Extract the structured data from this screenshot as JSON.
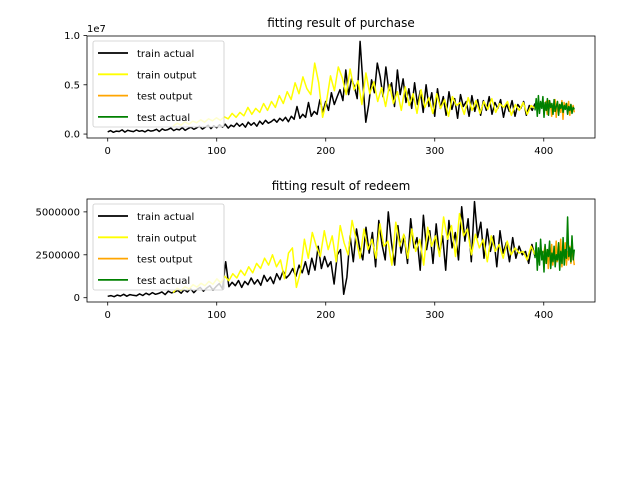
{
  "chart_data": [
    {
      "type": "line",
      "title": "fitting result of purchase",
      "xlabel": "",
      "ylabel": "",
      "xlim": [
        -19,
        447
      ],
      "ylim": [
        -400000,
        9950000
      ],
      "x_ticks": [
        0,
        100,
        200,
        300,
        400
      ],
      "x_tick_labels": [
        "0",
        "100",
        "200",
        "300",
        "400"
      ],
      "y_ticks": [
        0,
        5000000,
        10000000
      ],
      "y_tick_labels": [
        "0.0",
        "0.5",
        "1.0"
      ],
      "y_offset_label": "1e7",
      "grid": false,
      "legend_position": "upper left",
      "series": [
        {
          "name": "train actual",
          "color": "#000000",
          "x_start": 0,
          "values": [
            220000,
            350000,
            180000,
            300000,
            260000,
            420000,
            200000,
            380000,
            300000,
            250000,
            410000,
            280000,
            350000,
            220000,
            400000,
            300000,
            350000,
            480000,
            260000,
            520000,
            380000,
            450000,
            600000,
            350000,
            500000,
            420000,
            650000,
            380000,
            550000,
            700000,
            480000,
            620000,
            800000,
            500000,
            700000,
            900000,
            550000,
            850000,
            650000,
            950000,
            700000,
            1000000,
            600000,
            900000,
            750000,
            1100000,
            800000,
            1050000,
            700000,
            1200000,
            900000,
            1150000,
            800000,
            1300000,
            1000000,
            1400000,
            1100000,
            1250000,
            1500000,
            1200000,
            1600000,
            1350000,
            1700000,
            1250000,
            1800000,
            1500000,
            2800000,
            1600000,
            2000000,
            1700000,
            3200000,
            1800000,
            2300000,
            2000000,
            3500000,
            2200000,
            3300000,
            2400000,
            4200000,
            3000000,
            3800000,
            4500000,
            3400000,
            6500000,
            4000000,
            5600000,
            4800000,
            3600000,
            9400000,
            5000000,
            1200000,
            3000000,
            5500000,
            4200000,
            7200000,
            5800000,
            3800000,
            6800000,
            4400000,
            5200000,
            2800000,
            6500000,
            4000000,
            5600000,
            3200000,
            4600000,
            2600000,
            5200000,
            3000000,
            4400000,
            2200000,
            5000000,
            2800000,
            4200000,
            1800000,
            4600000,
            2600000,
            3800000,
            1900000,
            4300000,
            2500000,
            3600000,
            1600000,
            4000000,
            2800000,
            3300000,
            1800000,
            3900000,
            2300000,
            3500000,
            1900000,
            3400000,
            2400000,
            3800000,
            2000000,
            3200000,
            2600000,
            3500000,
            1700000,
            3100000,
            2300000,
            3400000,
            1800000,
            3000000,
            2600000,
            3300000,
            1900000,
            2900000,
            2400000,
            3100000
          ]
        },
        {
          "name": "train output",
          "color": "#ffff00",
          "x_start": 60,
          "values": [
            800000,
            1100000,
            900000,
            1250000,
            1000000,
            1300000,
            1150000,
            1450000,
            1200000,
            1550000,
            1350000,
            1650000,
            1400000,
            1750000,
            1550000,
            2100000,
            1700000,
            2200000,
            1850000,
            2700000,
            2000000,
            2600000,
            2200000,
            3100000,
            2400000,
            3300000,
            2700000,
            3900000,
            3100000,
            4300000,
            3500000,
            5200000,
            4100000,
            5800000,
            4600000,
            4000000,
            7200000,
            5200000,
            1700000,
            3300000,
            5900000,
            4400000,
            6800000,
            5700000,
            4000000,
            6600000,
            4500000,
            5400000,
            3000000,
            6200000,
            4100000,
            5300000,
            3300000,
            4700000,
            2800000,
            5000000,
            3100000,
            4300000,
            2400000,
            4800000,
            2900000,
            4100000,
            2100000,
            4500000,
            2700000,
            3700000,
            2100000,
            4100000,
            2600000,
            3500000,
            1800000,
            3800000,
            2900000,
            3200000,
            2000000,
            3700000,
            2400000,
            3400000,
            2100000,
            3300000,
            2500000,
            3600000,
            2200000,
            3100000,
            2700000,
            3300000,
            1900000,
            3000000,
            2400000,
            3200000,
            2000000,
            2900000,
            2600000
          ]
        },
        {
          "name": "test output",
          "color": "#ffa500",
          "x_start": 400,
          "values": [
            3000000,
            2400000,
            3300000,
            2000000,
            3400000,
            2600000,
            3100000,
            1800000,
            2900000,
            2300000,
            3500000,
            1700000,
            3300000,
            2600000,
            3000000,
            2200000,
            3400000,
            1500000,
            3200000,
            2700000,
            3100000,
            2400000,
            3300000,
            1900000,
            3000000,
            2500000,
            2900000,
            2200000
          ]
        },
        {
          "name": "test actual",
          "color": "#008000",
          "x_start": 392,
          "values": [
            2400000,
            3600000,
            1800000,
            3900000,
            2100000,
            3300000,
            2600000,
            3800000,
            1700000,
            3200000,
            2400000,
            3600000,
            1900000,
            3400000,
            2700000,
            3100000,
            2000000,
            3500000,
            2300000,
            2800000,
            3300000,
            1900000,
            3000000,
            2600000,
            3200000,
            2200000,
            2900000,
            2500000,
            3100000,
            2000000,
            2800000,
            2400000,
            3000000,
            2100000,
            2700000,
            2500000
          ]
        }
      ]
    },
    {
      "type": "line",
      "title": "fitting result of redeem",
      "xlabel": "",
      "ylabel": "",
      "xlim": [
        -19,
        447
      ],
      "ylim": [
        -250000,
        5750000
      ],
      "x_ticks": [
        0,
        100,
        200,
        300,
        400
      ],
      "x_tick_labels": [
        "0",
        "100",
        "200",
        "300",
        "400"
      ],
      "y_ticks": [
        0,
        2500000,
        5000000
      ],
      "y_tick_labels": [
        "0",
        "2500000",
        "5000000"
      ],
      "grid": false,
      "legend_position": "upper left",
      "series": [
        {
          "name": "train actual",
          "color": "#000000",
          "x_start": 0,
          "values": [
            80000,
            120000,
            60000,
            150000,
            100000,
            200000,
            90000,
            180000,
            140000,
            110000,
            220000,
            130000,
            260000,
            170000,
            300000,
            200000,
            250000,
            340000,
            180000,
            380000,
            280000,
            340000,
            420000,
            260000,
            460000,
            330000,
            520000,
            290000,
            480000,
            600000,
            380000,
            560000,
            700000,
            450000,
            650000,
            820000,
            520000,
            2100000,
            640000,
            900000,
            700000,
            1000000,
            600000,
            950000,
            760000,
            1150000,
            800000,
            1050000,
            720000,
            1300000,
            950000,
            1200000,
            820000,
            1400000,
            1050000,
            1550000,
            1150000,
            1350000,
            1700000,
            1250000,
            1900000,
            1450000,
            2100000,
            1350000,
            2300000,
            1600000,
            3000000,
            1700000,
            2400000,
            1800000,
            2100000,
            800000,
            2500000,
            2800000,
            200000,
            1200000,
            3600000,
            2100000,
            4000000,
            2900000,
            2200000,
            4100000,
            2600000,
            3800000,
            1800000,
            4500000,
            3100000,
            2200000,
            5000000,
            3200000,
            1900000,
            4200000,
            2600000,
            3600000,
            2000000,
            4600000,
            2900000,
            3500000,
            1600000,
            4800000,
            2800000,
            3900000,
            2000000,
            4300000,
            2500000,
            3600000,
            1600000,
            4500000,
            2900000,
            3800000,
            2200000,
            5300000,
            3300000,
            4600000,
            2100000,
            5600000,
            3500000,
            4400000,
            2300000,
            4000000,
            2700000,
            3600000,
            1800000,
            3900000,
            2600000,
            3200000,
            2100000,
            3500000,
            2300000,
            3000000,
            2500000,
            2700000,
            2000000,
            3100000,
            2400000
          ]
        },
        {
          "name": "train output",
          "color": "#ffff00",
          "x_start": 60,
          "values": [
            300000,
            550000,
            420000,
            650000,
            500000,
            760000,
            620000,
            840000,
            700000,
            950000,
            780000,
            1100000,
            860000,
            1250000,
            990000,
            1400000,
            1150000,
            1600000,
            1300000,
            1800000,
            1450000,
            2000000,
            1700000,
            2300000,
            1900000,
            2500000,
            1800000,
            2200000,
            1100000,
            2600000,
            2900000,
            600000,
            1500000,
            3400000,
            2300000,
            3800000,
            3000000,
            2400000,
            3900000,
            2800000,
            3600000,
            2100000,
            4200000,
            3200000,
            2500000,
            4500000,
            3400000,
            2300000,
            4000000,
            2800000,
            3400000,
            2300000,
            4300000,
            3000000,
            3300000,
            1900000,
            4400000,
            3000000,
            3700000,
            2300000,
            4000000,
            2700000,
            3400000,
            1900000,
            4100000,
            3000000,
            3600000,
            2400000,
            4700000,
            3400000,
            4200000,
            2400000,
            4900000,
            3600000,
            4000000,
            2500000,
            3700000,
            2900000,
            3400000,
            2100000,
            3600000,
            2700000,
            3100000,
            2300000,
            3300000,
            2500000,
            2900000,
            2600000,
            2700000,
            2200000,
            3000000,
            2500000
          ]
        },
        {
          "name": "test output",
          "color": "#ffa500",
          "x_start": 400,
          "values": [
            2600000,
            3000000,
            2000000,
            2800000,
            1700000,
            2600000,
            2200000,
            3100000,
            1900000,
            2700000,
            2400000,
            3300000,
            2100000,
            2900000,
            2300000,
            3400000,
            1800000,
            2800000,
            2500000,
            3200000,
            1900000,
            2700000,
            2200000,
            3000000,
            2000000,
            2600000,
            2400000,
            1900000
          ]
        },
        {
          "name": "test actual",
          "color": "#008000",
          "x_start": 392,
          "values": [
            2300000,
            3200000,
            1600000,
            2900000,
            1900000,
            3400000,
            2200000,
            2700000,
            1500000,
            3100000,
            2000000,
            2800000,
            2400000,
            3300000,
            1700000,
            2600000,
            2100000,
            3000000,
            1800000,
            2500000,
            2200000,
            3200000,
            1600000,
            2700000,
            2000000,
            3500000,
            1900000,
            2800000,
            2300000,
            4700000,
            2400000,
            2900000,
            2100000,
            3600000,
            2200000,
            2800000
          ]
        }
      ]
    }
  ]
}
